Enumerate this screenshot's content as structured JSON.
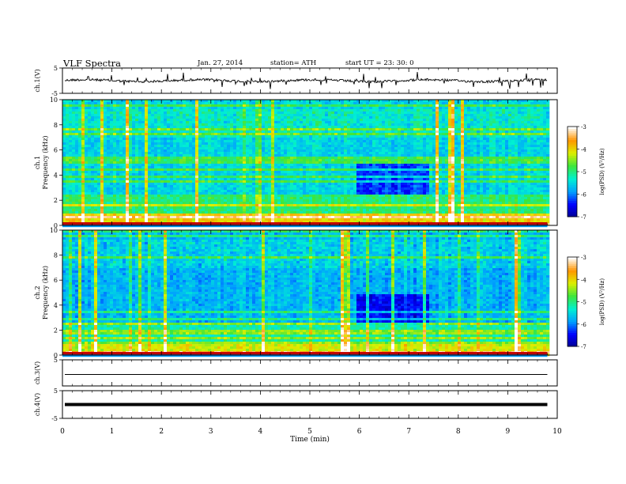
{
  "header": {
    "title": "VLF  Spectra",
    "date": "Jan. 27, 2014",
    "station": "station= ATH",
    "start": "start  UT =   23: 30: 0"
  },
  "chart_data": [
    {
      "type": "line",
      "panel": "ch1-waveform",
      "ylabel": "ch.1(V)",
      "ylim": [
        -5,
        5
      ],
      "yticks": [
        "5",
        "-5"
      ],
      "xlim": [
        0,
        10
      ]
    },
    {
      "type": "heatmap",
      "panel": "ch1-spectrogram",
      "ylabel": "ch.1 Frequency (kHz)",
      "ylim": [
        0,
        10
      ],
      "yticks": [
        "0",
        "2",
        "4",
        "6",
        "8",
        "10"
      ],
      "xlim": [
        0,
        10
      ],
      "data_end_min": 9.8,
      "colorbar": {
        "label": "log(PSD) (V²/Hz)",
        "ticks": [
          "-3",
          "-4",
          "-5",
          "-6",
          "-7"
        ],
        "range": [
          -7,
          -3
        ]
      }
    },
    {
      "type": "heatmap",
      "panel": "ch2-spectrogram",
      "ylabel": "ch.2 Frequency (kHz)",
      "ylim": [
        0,
        10
      ],
      "yticks": [
        "0",
        "2",
        "4",
        "6",
        "8",
        "10"
      ],
      "xlim": [
        0,
        10
      ],
      "data_end_min": 9.8,
      "colorbar": {
        "label": "log(PSD) (V²/Hz)",
        "ticks": [
          "-3",
          "-4",
          "-5",
          "-6",
          "-7"
        ],
        "range": [
          -7,
          -3
        ]
      }
    },
    {
      "type": "line",
      "panel": "ch3-waveform",
      "ylabel": "ch.3(V)",
      "ylim": [
        -5,
        5
      ],
      "yticks": [
        "5"
      ],
      "xlim": [
        0,
        10
      ]
    },
    {
      "type": "line",
      "panel": "ch4-waveform",
      "ylabel": "ch.4(V)",
      "ylim": [
        -5,
        5
      ],
      "yticks": [
        "5",
        "-5"
      ],
      "xlim": [
        0,
        10
      ]
    }
  ],
  "xaxis": {
    "label": "Time  (min)",
    "ticks": [
      "0",
      "1",
      "2",
      "3",
      "4",
      "5",
      "6",
      "7",
      "8",
      "9",
      "10"
    ]
  }
}
